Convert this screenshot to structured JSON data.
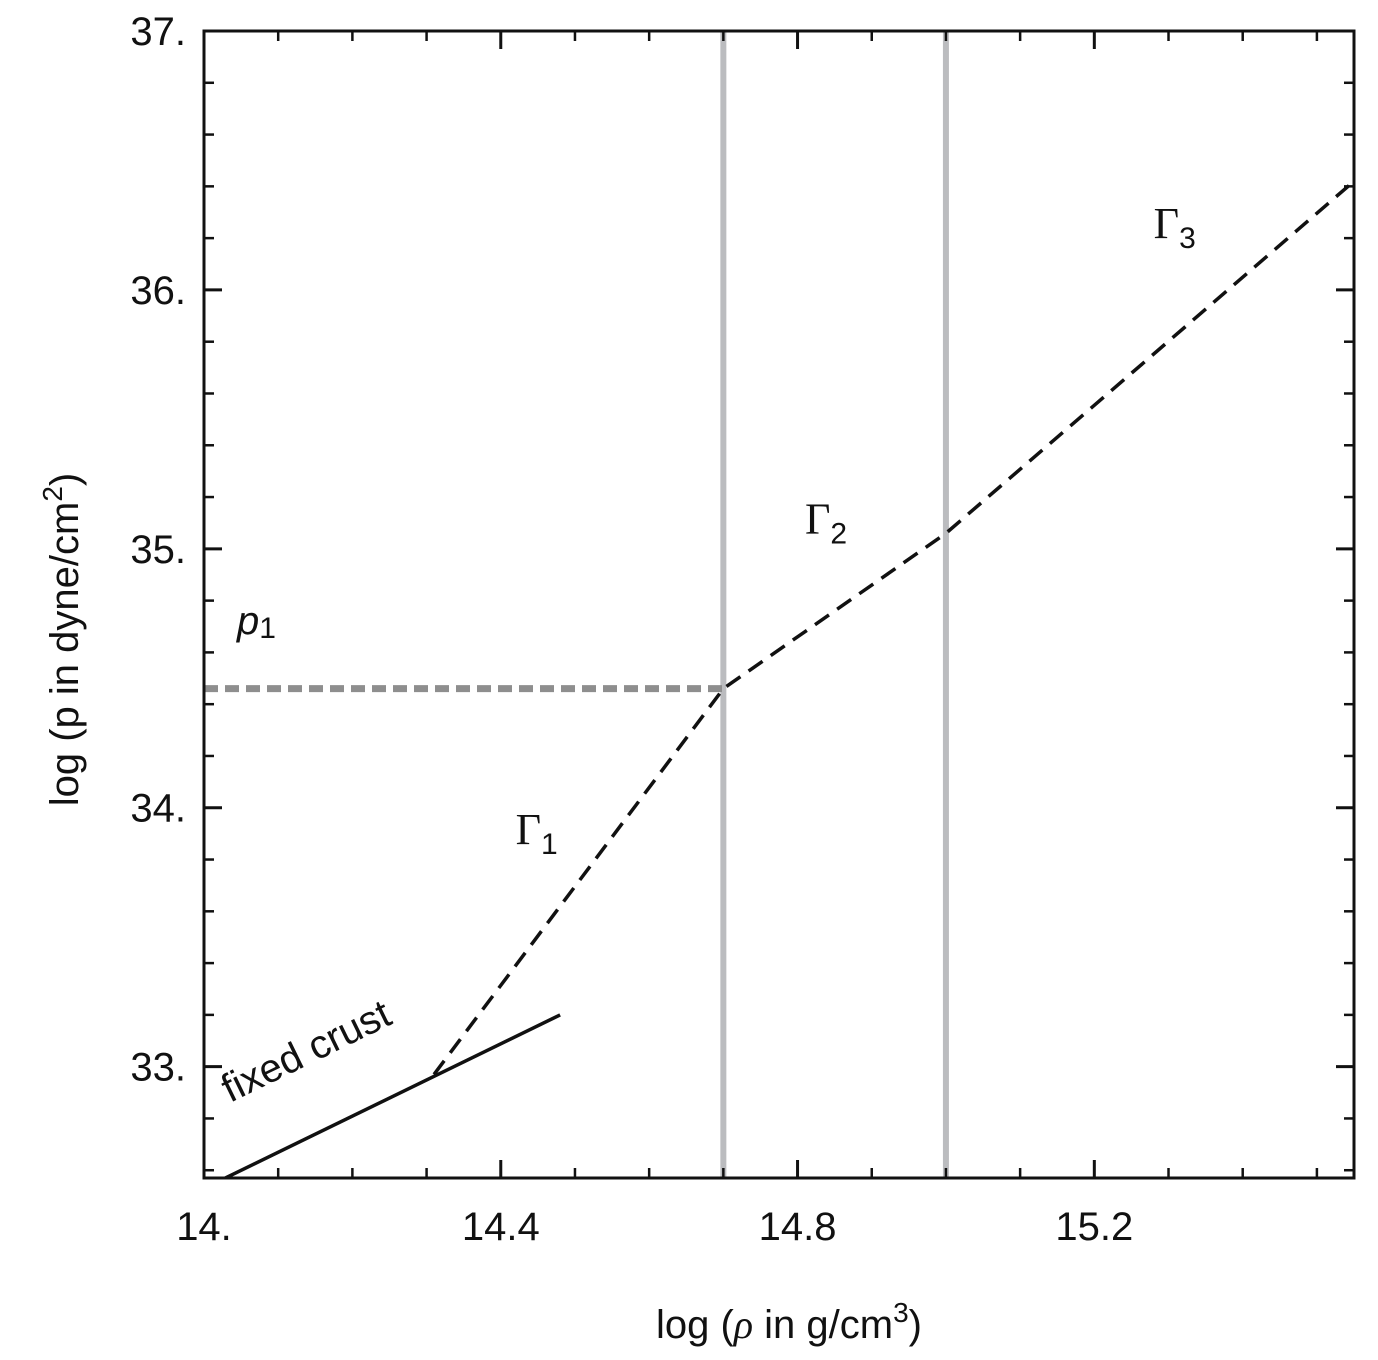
{
  "chart_data": {
    "type": "line",
    "xlabel": "log (ρ in g/cm3)",
    "xlabel_parts": {
      "prefix": "log (",
      "symbol": "ρ",
      "mid": " in g/cm",
      "sup": "3",
      "suffix": ")"
    },
    "ylabel": "log (p in dyne/cm2)",
    "ylabel_parts": {
      "prefix": "log (p in dyne/cm",
      "sup": "2",
      "suffix": ")"
    },
    "xlim": [
      14.0,
      15.55
    ],
    "ylim": [
      32.57,
      37.0
    ],
    "x_ticks": [
      {
        "value": 14.0,
        "label": "14."
      },
      {
        "value": 14.4,
        "label": "14.4"
      },
      {
        "value": 14.8,
        "label": "14.8"
      },
      {
        "value": 15.2,
        "label": "15.2"
      }
    ],
    "y_ticks": [
      {
        "value": 33.0,
        "label": "33."
      },
      {
        "value": 34.0,
        "label": "34."
      },
      {
        "value": 35.0,
        "label": "35."
      },
      {
        "value": 36.0,
        "label": "36."
      },
      {
        "value": 37.0,
        "label": "37."
      }
    ],
    "x_minor_step": 0.1,
    "y_minor_step": 0.2,
    "grid": false,
    "series": [
      {
        "label": "fixed crust",
        "style": "solid",
        "color": "#111111",
        "x": [
          14.0,
          14.48
        ],
        "y": [
          32.53,
          33.2
        ]
      },
      {
        "style": "dashed",
        "color": "#111111",
        "x": [
          14.31,
          14.7,
          15.0,
          15.55
        ],
        "y": [
          32.97,
          34.46,
          35.06,
          36.42
        ]
      }
    ],
    "vertical_lines": [
      {
        "x": 14.7,
        "color": "#bbbcbf"
      },
      {
        "x": 15.0,
        "color": "#bbbcbf"
      }
    ],
    "horizontal_marker": {
      "y": 34.46,
      "x_from": 14.0,
      "x_to": 14.7,
      "style": "dashed",
      "color": "#8e8e8e",
      "label": "p",
      "label_sub": "1"
    },
    "segment_labels": [
      {
        "symbol": "Γ",
        "sub": "1",
        "x": 14.42,
        "y": 33.86
      },
      {
        "symbol": "Γ",
        "sub": "2",
        "x": 14.81,
        "y": 35.06
      },
      {
        "symbol": "Γ",
        "sub": "3",
        "x": 15.28,
        "y": 36.2
      }
    ]
  }
}
